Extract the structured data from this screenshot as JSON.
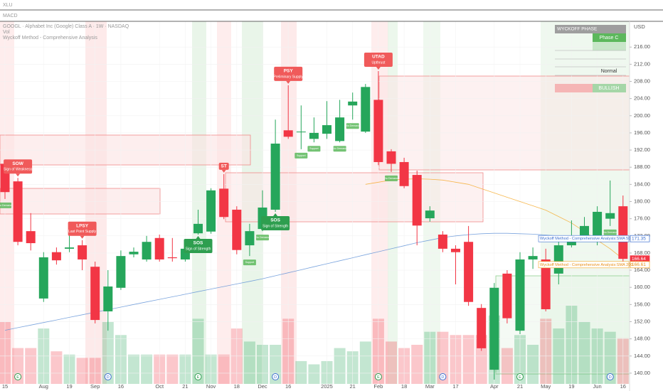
{
  "top_pane": "XLU",
  "macd_pane": "MACD",
  "chart_data": {
    "type": "candlestick",
    "title": "GOOGL · Alphabet Inc (Google) Class A · 1W · NASDAQ",
    "volume_label": "Vol",
    "indicator": "Wyckoff Method - Comprehensive Analysis",
    "currency": "USD",
    "categories": [
      "15",
      null,
      null,
      "Aug",
      null,
      "19",
      null,
      "Sep",
      null,
      "16",
      null,
      null,
      "Oct",
      null,
      "21",
      null,
      "Nov",
      null,
      "18",
      null,
      "Dec",
      null,
      "16",
      null,
      null,
      "2025",
      null,
      "21",
      null,
      "Feb",
      null,
      "18",
      null,
      "Mar",
      null,
      "17",
      null,
      null,
      "Apr",
      null,
      "21",
      null,
      "May",
      null,
      "19",
      null,
      "Jun",
      null,
      "16"
    ],
    "open": [
      188.8,
      184.7,
      173.1,
      157.4,
      168.2,
      169.0,
      169.8,
      164.8,
      154.4,
      159.9,
      167.7,
      166.5,
      171.5,
      167.0,
      166.5,
      172.6,
      173.0,
      183.0,
      178.1,
      169.8,
      173.6,
      178.1,
      196.6,
      196.3,
      194.6,
      195.8,
      194.1,
      202.4,
      196.3,
      203.7,
      191.7,
      189.2,
      186.2,
      176.1,
      172.3,
      169.0,
      170.6,
      155.2,
      140.8,
      163.2,
      149.9,
      166.5,
      166.5,
      163.2,
      169.8,
      172.0,
      171.5,
      176.0,
      178.9
    ],
    "high": [
      189.7,
      185.5,
      177.3,
      168.2,
      169.3,
      172.3,
      171.0,
      166.0,
      164.0,
      168.6,
      169.3,
      172.0,
      172.3,
      171.5,
      169.3,
      178.1,
      183.1,
      186.4,
      178.9,
      174.8,
      182.6,
      199.1,
      207.1,
      202.4,
      199.6,
      203.4,
      203.7,
      205.4,
      207.4,
      210.4,
      192.2,
      190.2,
      187.2,
      178.9,
      173.1,
      169.8,
      174.3,
      156.1,
      161.0,
      164.0,
      168.2,
      169.3,
      169.0,
      170.6,
      175.6,
      176.4,
      178.9,
      184.9,
      181.4
    ],
    "low": [
      180.6,
      169.8,
      168.6,
      156.6,
      165.3,
      168.2,
      164.0,
      151.6,
      149.9,
      159.4,
      167.0,
      166.0,
      166.0,
      166.0,
      166.0,
      172.3,
      172.5,
      175.9,
      167.7,
      167.3,
      173.1,
      177.6,
      194.6,
      192.2,
      193.8,
      194.6,
      193.8,
      199.1,
      196.0,
      188.5,
      186.9,
      183.1,
      169.8,
      175.3,
      168.2,
      160.7,
      155.7,
      145.2,
      138.5,
      151.6,
      149.1,
      164.3,
      154.4,
      160.7,
      169.3,
      171.5,
      169.8,
      174.3,
      165.8
    ],
    "close": [
      182.2,
      170.6,
      170.3,
      167.0,
      166.3,
      169.3,
      166.5,
      152.4,
      160.2,
      167.3,
      168.3,
      170.6,
      166.5,
      166.8,
      169.0,
      174.8,
      182.6,
      176.4,
      168.7,
      173.1,
      178.6,
      193.5,
      195.1,
      196.3,
      196.0,
      197.8,
      199.6,
      203.3,
      206.7,
      189.2,
      188.8,
      183.6,
      174.4,
      177.9,
      169.0,
      168.2,
      156.6,
      145.8,
      159.9,
      152.8,
      166.5,
      167.3,
      154.9,
      169.8,
      170.6,
      174.3,
      177.6,
      177.3,
      166.64
    ],
    "volume": [
      95,
      55,
      55,
      85,
      50,
      45,
      40,
      40,
      95,
      75,
      45,
      45,
      45,
      45,
      45,
      100,
      45,
      45,
      85,
      65,
      60,
      60,
      100,
      35,
      30,
      35,
      55,
      50,
      65,
      100,
      65,
      55,
      60,
      80,
      80,
      75,
      75,
      75,
      105,
      55,
      75,
      60,
      100,
      85,
      120,
      95,
      85,
      80,
      70
    ],
    "up_color": "#26a65b",
    "down_color": "#f23645",
    "lines": [
      {
        "name": "Wyckoff Method - Comprehensive Analysis:SMA 50",
        "color": "#5b8fd6",
        "values": [
          150.0,
          150.6,
          151.2,
          151.8,
          152.4,
          153.0,
          153.6,
          154.2,
          154.8,
          155.4,
          156.0,
          156.6,
          157.2,
          157.8,
          158.4,
          159.0,
          159.6,
          160.2,
          160.8,
          161.4,
          162.0,
          162.7,
          163.4,
          164.1,
          164.8,
          165.5,
          166.2,
          166.9,
          167.6,
          168.3,
          169.0,
          169.7,
          170.4,
          171.0,
          171.6,
          172.0,
          172.3,
          172.5,
          172.6,
          172.6,
          172.5,
          172.4,
          172.2,
          172.0,
          171.8,
          171.6,
          171.5,
          171.4,
          171.35
        ]
      },
      {
        "name": "Wyckoff Method - Comprehensive Analysis:SMA 200",
        "color": "#f5a623",
        "values": [
          null,
          null,
          null,
          null,
          null,
          null,
          null,
          null,
          null,
          null,
          null,
          null,
          null,
          null,
          null,
          null,
          null,
          null,
          null,
          null,
          null,
          null,
          null,
          null,
          null,
          null,
          null,
          null,
          184,
          184.5,
          185,
          185.2,
          185.3,
          185.2,
          185,
          184.5,
          184,
          183,
          182,
          181,
          180,
          179,
          178,
          176.5,
          175,
          173,
          171,
          169,
          166.61
        ]
      }
    ],
    "ylim": [
      137.5,
      222
    ],
    "yticks": [
      {
        "value": 140,
        "label": "140.00"
      },
      {
        "value": 144,
        "label": "144.00"
      },
      {
        "value": 148,
        "label": "148.00"
      },
      {
        "value": 152,
        "label": "152.00"
      },
      {
        "value": 156,
        "label": "156.00"
      },
      {
        "value": 160,
        "label": "160.00"
      },
      {
        "value": 164,
        "label": "164.00"
      },
      {
        "value": 168,
        "label": "168.00"
      },
      {
        "value": 172,
        "label": "172.00"
      },
      {
        "value": 176,
        "label": "176.00"
      },
      {
        "value": 180,
        "label": "180.00"
      },
      {
        "value": 184,
        "label": "184.00"
      },
      {
        "value": 188,
        "label": "188.00"
      },
      {
        "value": 192,
        "label": "192.00"
      },
      {
        "value": 196,
        "label": "196.00"
      },
      {
        "value": 200,
        "label": "200.00"
      },
      {
        "value": 204,
        "label": "204.00"
      },
      {
        "value": 208,
        "label": "208.00"
      },
      {
        "value": 212,
        "label": "212.00"
      },
      {
        "value": 216,
        "label": "216.00"
      }
    ],
    "grid": true,
    "annotations": [
      {
        "label": "SOW",
        "text": "Sign of Weakness"
      },
      {
        "label": "LPSY",
        "text": "Last Point Supply"
      },
      {
        "label": "ST",
        "text": ""
      },
      {
        "label": "SOS",
        "text": "Sign of Strength"
      },
      {
        "label": "SOS",
        "text": "Sign of Strength"
      },
      {
        "label": "PSY",
        "text": "Preliminary Supply"
      },
      {
        "label": "UTAD",
        "text": "Upthrust"
      }
    ],
    "small_labels": [
      "No Demand",
      "No Demand",
      "No Demand",
      "No Demand",
      "No Demand",
      "No Demand",
      "Support",
      "Support",
      "Support"
    ],
    "events": [
      "E",
      "D",
      "E",
      "D",
      "E",
      "D",
      "E",
      "D"
    ],
    "table": {
      "header": "WYCKOFF PHASE",
      "phase": "Phase C",
      "volume_state": "Normal",
      "bias": "BULLISH"
    }
  }
}
